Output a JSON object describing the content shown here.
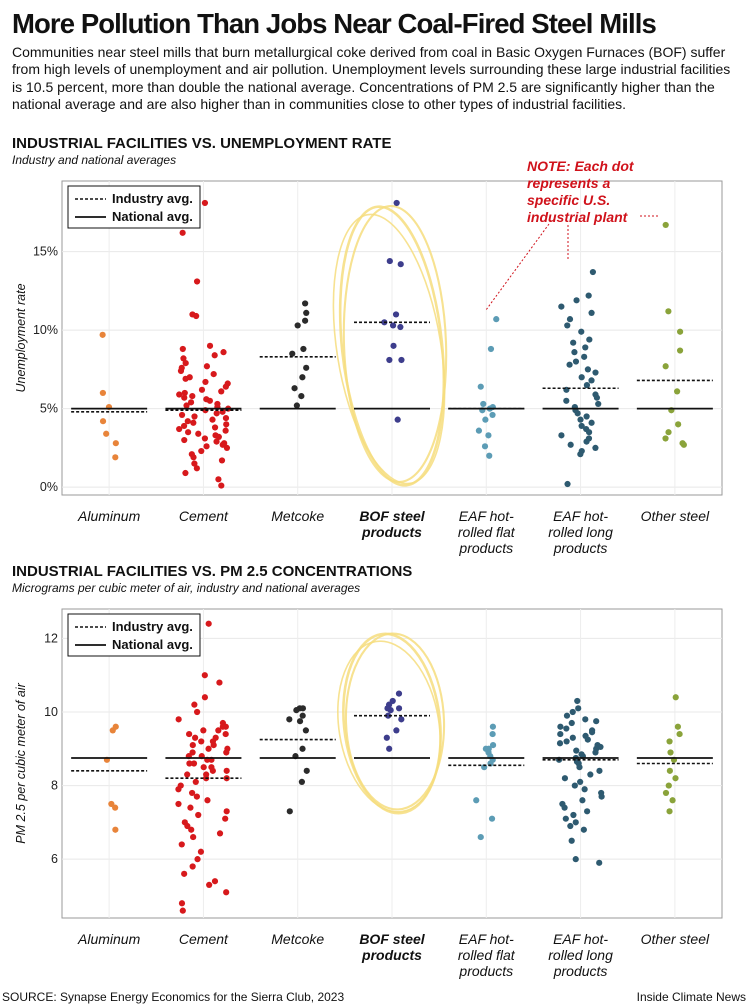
{
  "title": "More Pollution Than Jobs Near Coal-Fired Steel Mills",
  "intro": "Communities near steel mills that burn metallurgical coke derived from coal in Basic Oxygen Furnaces (BOF) suffer from high levels of unemployment and air pollution. Unemployment levels surrounding these large industrial facilities is 10.5 percent, more than double the national average. Concentrations of PM 2.5 are significantly higher than the national average and are also higher than in communities close to other types of industrial facilities.",
  "source": "SOURCE: Synapse Energy Economics for the Sierra Club, 2023",
  "credit": "Inside Climate News",
  "colors": {
    "Aluminum": "#e8843a",
    "Cement": "#d7191c",
    "Metcoke": "#2b2b2b",
    "BOF steel products": "#3d3d8c",
    "EAF hot-rolled flat products": "#5c9cb5",
    "EAF hot-rolled long products": "#2e5a70",
    "Other steel": "#8aa33a",
    "highlight": "#f6dd7e",
    "note": "#d0121b"
  },
  "chart_data": [
    {
      "type": "scatter",
      "section_title": "INDUSTRIAL FACILITIES VS. UNEMPLOYMENT RATE",
      "subtitle": "Industry and national averages",
      "ylabel": "Unemployment rate",
      "ylim": [
        -0.5,
        19.5
      ],
      "yticks": [
        0,
        5,
        10,
        15
      ],
      "ytick_labels": [
        "0%",
        "5%",
        "10%",
        "15%"
      ],
      "legend": [
        "Industry avg.",
        "National avg."
      ],
      "note": "NOTE: Each dot represents a specific U.S. industrial plant",
      "highlight_category": "BOF steel products",
      "categories": [
        {
          "name": "Aluminum",
          "label_lines": [
            "Aluminum"
          ],
          "bold": false,
          "industry_avg": 4.8,
          "national_avg": 5.0,
          "values": [
            9.7,
            6.0,
            5.1,
            4.2,
            3.4,
            2.8,
            1.9
          ]
        },
        {
          "name": "Cement",
          "label_lines": [
            "Cement"
          ],
          "bold": false,
          "industry_avg": 4.9,
          "national_avg": 5.0,
          "values": [
            18.1,
            16.2,
            13.1,
            11.0,
            10.9,
            9.0,
            8.8,
            8.6,
            8.4,
            8.2,
            7.9,
            7.7,
            7.6,
            7.4,
            7.2,
            7.0,
            6.9,
            6.7,
            6.6,
            6.4,
            6.2,
            6.1,
            6.0,
            5.9,
            5.8,
            5.7,
            5.6,
            5.5,
            5.4,
            5.3,
            5.2,
            5.1,
            5.0,
            4.9,
            4.8,
            4.7,
            4.6,
            4.5,
            4.4,
            4.3,
            4.2,
            4.1,
            4.0,
            3.9,
            3.8,
            3.7,
            3.6,
            3.5,
            3.4,
            3.3,
            3.2,
            3.1,
            3.0,
            2.9,
            2.8,
            2.7,
            2.6,
            2.5,
            2.3,
            2.1,
            1.9,
            1.7,
            1.5,
            1.2,
            0.9,
            0.5,
            0.1
          ]
        },
        {
          "name": "Metcoke",
          "label_lines": [
            "Metcoke"
          ],
          "bold": false,
          "industry_avg": 8.3,
          "national_avg": 5.0,
          "values": [
            11.7,
            11.1,
            10.6,
            10.3,
            8.8,
            8.5,
            7.6,
            7.0,
            6.3,
            5.8,
            5.2
          ]
        },
        {
          "name": "BOF steel products",
          "label_lines": [
            "BOF steel",
            "products"
          ],
          "bold": true,
          "industry_avg": 10.5,
          "national_avg": 5.0,
          "values": [
            18.1,
            14.4,
            14.2,
            11.0,
            10.5,
            10.3,
            10.2,
            9.0,
            8.1,
            8.1,
            4.3
          ]
        },
        {
          "name": "EAF hot-rolled flat products",
          "label_lines": [
            "EAF hot-",
            "rolled flat",
            "products"
          ],
          "bold": false,
          "industry_avg": 5.0,
          "national_avg": 5.0,
          "values": [
            10.7,
            8.8,
            6.4,
            5.3,
            5.1,
            5.0,
            4.9,
            4.6,
            4.3,
            3.6,
            3.3,
            2.6,
            2.0
          ]
        },
        {
          "name": "EAF hot-rolled long products",
          "label_lines": [
            "EAF hot-",
            "rolled long",
            "products"
          ],
          "bold": false,
          "industry_avg": 6.3,
          "national_avg": 5.0,
          "values": [
            13.7,
            12.2,
            11.9,
            11.5,
            11.1,
            10.7,
            10.3,
            9.9,
            9.4,
            9.2,
            8.9,
            8.6,
            8.3,
            8.0,
            7.8,
            7.5,
            7.3,
            7.0,
            6.8,
            6.5,
            6.2,
            5.9,
            5.7,
            5.5,
            5.3,
            5.1,
            4.9,
            4.7,
            4.5,
            4.3,
            4.1,
            3.9,
            3.7,
            3.5,
            3.3,
            3.1,
            2.9,
            2.7,
            2.5,
            2.3,
            2.1,
            0.2
          ]
        },
        {
          "name": "Other steel",
          "label_lines": [
            "Other steel"
          ],
          "bold": false,
          "industry_avg": 6.8,
          "national_avg": 5.0,
          "values": [
            16.7,
            11.2,
            9.9,
            8.7,
            7.7,
            6.1,
            4.9,
            4.0,
            3.5,
            3.1,
            2.8,
            2.7
          ]
        }
      ]
    },
    {
      "type": "scatter",
      "section_title": "INDUSTRIAL FACILITIES VS. PM 2.5 CONCENTRATIONS",
      "subtitle": "Micrograms per cubic meter of air, industry and national averages",
      "ylabel": "PM 2.5 per cubic meter of air",
      "ylim": [
        4.4,
        12.8
      ],
      "yticks": [
        6,
        8,
        10,
        12
      ],
      "ytick_labels": [
        "6",
        "8",
        "10",
        "12"
      ],
      "legend": [
        "Industry avg.",
        "National avg."
      ],
      "highlight_category": "BOF steel products",
      "categories": [
        {
          "name": "Aluminum",
          "label_lines": [
            "Aluminum"
          ],
          "bold": false,
          "industry_avg": 8.4,
          "national_avg": 8.75,
          "values": [
            9.6,
            9.5,
            8.7,
            7.5,
            7.4,
            6.8
          ]
        },
        {
          "name": "Cement",
          "label_lines": [
            "Cement"
          ],
          "bold": false,
          "industry_avg": 8.2,
          "national_avg": 8.75,
          "values": [
            12.4,
            11.0,
            10.8,
            10.4,
            10.2,
            10.0,
            9.8,
            9.7,
            9.6,
            9.6,
            9.5,
            9.5,
            9.4,
            9.4,
            9.3,
            9.3,
            9.2,
            9.2,
            9.1,
            9.1,
            9.0,
            9.0,
            8.9,
            8.9,
            8.8,
            8.8,
            8.7,
            8.7,
            8.6,
            8.6,
            8.5,
            8.5,
            8.4,
            8.4,
            8.3,
            8.3,
            8.2,
            8.2,
            8.1,
            8.0,
            7.9,
            7.8,
            7.7,
            7.6,
            7.5,
            7.4,
            7.3,
            7.2,
            7.1,
            7.0,
            6.9,
            6.8,
            6.7,
            6.6,
            6.4,
            6.2,
            6.0,
            5.8,
            5.6,
            5.4,
            5.3,
            5.1,
            4.8,
            4.6
          ]
        },
        {
          "name": "Metcoke",
          "label_lines": [
            "Metcoke"
          ],
          "bold": false,
          "industry_avg": 9.25,
          "national_avg": 8.75,
          "values": [
            10.1,
            10.1,
            10.05,
            9.9,
            9.8,
            9.75,
            9.5,
            9.0,
            8.8,
            8.4,
            8.1,
            7.3
          ]
        },
        {
          "name": "BOF steel products",
          "label_lines": [
            "BOF steel",
            "products"
          ],
          "bold": true,
          "industry_avg": 9.9,
          "national_avg": 8.75,
          "values": [
            10.5,
            10.3,
            10.2,
            10.1,
            10.1,
            10.05,
            9.9,
            9.8,
            9.5,
            9.3,
            9.0
          ]
        },
        {
          "name": "EAF hot-rolled flat products",
          "label_lines": [
            "EAF hot-",
            "rolled flat",
            "products"
          ],
          "bold": false,
          "industry_avg": 8.55,
          "national_avg": 8.75,
          "values": [
            9.6,
            9.4,
            9.1,
            9.0,
            9.0,
            8.9,
            8.8,
            8.7,
            8.6,
            8.5,
            7.6,
            7.1,
            6.6
          ]
        },
        {
          "name": "EAF hot-rolled long products",
          "label_lines": [
            "EAF hot-",
            "rolled long",
            "products"
          ],
          "bold": false,
          "industry_avg": 8.7,
          "national_avg": 8.75,
          "values": [
            10.3,
            10.1,
            10.0,
            9.9,
            9.8,
            9.75,
            9.7,
            9.6,
            9.55,
            9.5,
            9.45,
            9.4,
            9.35,
            9.3,
            9.25,
            9.2,
            9.15,
            9.1,
            9.05,
            9.0,
            8.95,
            8.9,
            8.85,
            8.8,
            8.75,
            8.7,
            8.65,
            8.6,
            8.5,
            8.4,
            8.3,
            8.2,
            8.1,
            8.0,
            7.9,
            7.8,
            7.7,
            7.6,
            7.5,
            7.4,
            7.3,
            7.2,
            7.1,
            7.0,
            6.9,
            6.8,
            6.5,
            6.0,
            5.9
          ]
        },
        {
          "name": "Other steel",
          "label_lines": [
            "Other steel"
          ],
          "bold": false,
          "industry_avg": 8.6,
          "national_avg": 8.75,
          "values": [
            10.4,
            9.6,
            9.4,
            9.2,
            8.9,
            8.7,
            8.4,
            8.2,
            8.0,
            7.8,
            7.6,
            7.3
          ]
        }
      ]
    }
  ]
}
